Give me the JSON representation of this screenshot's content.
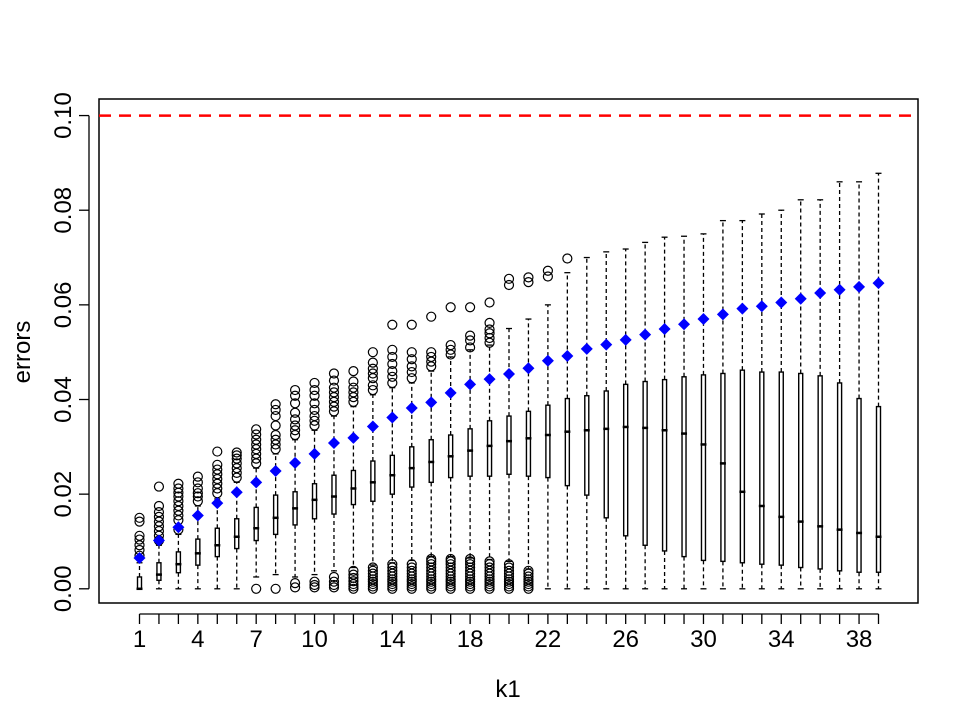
{
  "chart_data": {
    "type": "boxplot",
    "xlabel": "k1",
    "ylabel": "errors",
    "ylim": [
      -0.003,
      0.1035
    ],
    "yticks": [
      "0.00",
      "0.02",
      "0.04",
      "0.06",
      "0.08",
      "0.10"
    ],
    "xtick_labels": [
      "1",
      "4",
      "7",
      "10",
      "14",
      "18",
      "22",
      "26",
      "30",
      "34",
      "38"
    ],
    "categories": [
      1,
      2,
      3,
      4,
      5,
      6,
      7,
      8,
      9,
      10,
      11,
      12,
      13,
      14,
      15,
      16,
      17,
      18,
      19,
      20,
      21,
      22,
      23,
      24,
      25,
      26,
      27,
      28,
      29,
      30,
      31,
      32,
      33,
      34,
      35,
      36,
      37,
      38,
      39
    ],
    "threshold": {
      "value": 0.1,
      "color": "#ff0000",
      "style": "dashed"
    },
    "mean_series": {
      "color": "#0000ff",
      "values": [
        0.0065,
        0.0102,
        0.013,
        0.0155,
        0.0181,
        0.0204,
        0.0225,
        0.0249,
        0.0266,
        0.0285,
        0.0308,
        0.0319,
        0.0343,
        0.0362,
        0.0382,
        0.0394,
        0.0414,
        0.0432,
        0.0443,
        0.0454,
        0.0466,
        0.0482,
        0.0492,
        0.0507,
        0.0516,
        0.0526,
        0.0537,
        0.0549,
        0.0559,
        0.057,
        0.058,
        0.0592,
        0.0597,
        0.0605,
        0.0613,
        0.0625,
        0.0632,
        0.0638,
        0.0646
      ]
    },
    "boxes": [
      {
        "low": 0.0,
        "q1": 0.0,
        "median": 0.0,
        "q3": 0.0025,
        "high": 0.0055,
        "outliers": [
          0.007,
          0.0082,
          0.0092,
          0.0104,
          0.0112,
          0.0142,
          0.015
        ]
      },
      {
        "low": 0.0,
        "q1": 0.0018,
        "median": 0.003,
        "q3": 0.0055,
        "high": 0.0092,
        "outliers": [
          0.0102,
          0.0112,
          0.0122,
          0.0132,
          0.0142,
          0.0152,
          0.0162,
          0.0175,
          0.0216
        ]
      },
      {
        "low": 0.0,
        "q1": 0.0034,
        "median": 0.0052,
        "q3": 0.0078,
        "high": 0.0115,
        "outliers": [
          0.0125,
          0.0145,
          0.0155,
          0.0165,
          0.0175,
          0.0185,
          0.0195,
          0.0203,
          0.0212,
          0.0222
        ]
      },
      {
        "low": 0.0,
        "q1": 0.005,
        "median": 0.0075,
        "q3": 0.0105,
        "high": 0.0175,
        "outliers": [
          0.0185,
          0.0195,
          0.0202,
          0.0212,
          0.0225,
          0.0237
        ]
      },
      {
        "low": 0.0,
        "q1": 0.0068,
        "median": 0.0092,
        "q3": 0.0128,
        "high": 0.019,
        "outliers": [
          0.0202,
          0.0212,
          0.0222,
          0.0232,
          0.0242,
          0.0252,
          0.0262,
          0.029
        ]
      },
      {
        "low": 0.0,
        "q1": 0.0085,
        "median": 0.011,
        "q3": 0.0148,
        "high": 0.0225,
        "outliers": [
          0.0235,
          0.0245,
          0.0255,
          0.0265,
          0.0275,
          0.0282,
          0.0288
        ]
      },
      {
        "low": 0.0025,
        "q1": 0.0102,
        "median": 0.0128,
        "q3": 0.0172,
        "high": 0.0255,
        "outliers": [
          0.0,
          0.0265,
          0.0275,
          0.0285,
          0.0295,
          0.0305,
          0.0315,
          0.0326,
          0.0337
        ]
      },
      {
        "low": 0.003,
        "q1": 0.0115,
        "median": 0.015,
        "q3": 0.0198,
        "high": 0.0285,
        "outliers": [
          0.0,
          0.0295,
          0.0305,
          0.0315,
          0.0325,
          0.0345,
          0.0365,
          0.0378,
          0.039
        ]
      },
      {
        "low": 0.0025,
        "q1": 0.0135,
        "median": 0.017,
        "q3": 0.0205,
        "high": 0.0315,
        "outliers": [
          0.0003,
          0.0012,
          0.0325,
          0.0335,
          0.0345,
          0.0358,
          0.0372,
          0.0392,
          0.0408,
          0.042
        ]
      },
      {
        "low": 0.003,
        "q1": 0.0148,
        "median": 0.0188,
        "q3": 0.0222,
        "high": 0.0335,
        "outliers": [
          0.0003,
          0.0008,
          0.0015,
          0.0345,
          0.0355,
          0.0365,
          0.0378,
          0.0392,
          0.0408,
          0.042,
          0.0435
        ]
      },
      {
        "low": 0.0038,
        "q1": 0.0158,
        "median": 0.0195,
        "q3": 0.024,
        "high": 0.0365,
        "outliers": [
          0.0003,
          0.0008,
          0.0015,
          0.0025,
          0.0375,
          0.0385,
          0.0395,
          0.0405,
          0.0415,
          0.0425,
          0.044,
          0.0455
        ]
      },
      {
        "low": 0.0045,
        "q1": 0.0178,
        "median": 0.0212,
        "q3": 0.025,
        "high": 0.0385,
        "outliers": [
          0.0,
          0.0005,
          0.001,
          0.0016,
          0.0023,
          0.003,
          0.0038,
          0.0395,
          0.0405,
          0.0415,
          0.0425,
          0.0438,
          0.046
        ]
      },
      {
        "low": 0.005,
        "q1": 0.0185,
        "median": 0.0225,
        "q3": 0.027,
        "high": 0.041,
        "outliers": [
          0.0,
          0.0005,
          0.001,
          0.0015,
          0.002,
          0.0026,
          0.0032,
          0.0038,
          0.0045,
          0.042,
          0.043,
          0.0445,
          0.0455,
          0.0465,
          0.0478,
          0.05
        ]
      },
      {
        "low": 0.0055,
        "q1": 0.02,
        "median": 0.024,
        "q3": 0.0282,
        "high": 0.0425,
        "outliers": [
          0.0,
          0.0005,
          0.001,
          0.0015,
          0.002,
          0.0026,
          0.0032,
          0.0038,
          0.0045,
          0.0052,
          0.0435,
          0.0448,
          0.046,
          0.0475,
          0.049,
          0.0505,
          0.0558
        ]
      },
      {
        "low": 0.006,
        "q1": 0.0215,
        "median": 0.0255,
        "q3": 0.03,
        "high": 0.0435,
        "outliers": [
          0.0,
          0.0005,
          0.001,
          0.0015,
          0.002,
          0.0026,
          0.0032,
          0.0038,
          0.0045,
          0.0052,
          0.0445,
          0.0458,
          0.047,
          0.0485,
          0.05,
          0.0558
        ]
      },
      {
        "low": 0.0068,
        "q1": 0.0225,
        "median": 0.0268,
        "q3": 0.0315,
        "high": 0.046,
        "outliers": [
          0.0,
          0.0005,
          0.001,
          0.0015,
          0.002,
          0.0026,
          0.0032,
          0.0038,
          0.0045,
          0.0052,
          0.0058,
          0.0063,
          0.047,
          0.048,
          0.049,
          0.05,
          0.0575
        ]
      },
      {
        "low": 0.0068,
        "q1": 0.0235,
        "median": 0.028,
        "q3": 0.0325,
        "high": 0.049,
        "outliers": [
          0.0,
          0.0005,
          0.001,
          0.0015,
          0.002,
          0.0026,
          0.0032,
          0.0038,
          0.0045,
          0.0052,
          0.0058,
          0.0063,
          0.0495,
          0.0505,
          0.0515,
          0.0595
        ]
      },
      {
        "low": 0.0065,
        "q1": 0.0238,
        "median": 0.0292,
        "q3": 0.0338,
        "high": 0.0505,
        "outliers": [
          0.0,
          0.0005,
          0.001,
          0.0015,
          0.002,
          0.0026,
          0.0032,
          0.0038,
          0.0045,
          0.0052,
          0.0058,
          0.0063,
          0.051,
          0.0525,
          0.0535,
          0.0595
        ]
      },
      {
        "low": 0.0062,
        "q1": 0.0238,
        "median": 0.0302,
        "q3": 0.0355,
        "high": 0.0515,
        "outliers": [
          0.0,
          0.0005,
          0.001,
          0.0015,
          0.002,
          0.0026,
          0.0032,
          0.0038,
          0.0045,
          0.0052,
          0.0058,
          0.052,
          0.053,
          0.054,
          0.0548,
          0.0562,
          0.0605
        ]
      },
      {
        "low": 0.0058,
        "q1": 0.0242,
        "median": 0.0312,
        "q3": 0.0365,
        "high": 0.055,
        "outliers": [
          0.0,
          0.0005,
          0.001,
          0.0015,
          0.002,
          0.0026,
          0.0032,
          0.0038,
          0.0045,
          0.0052,
          0.0642,
          0.0655
        ]
      },
      {
        "low": 0.0042,
        "q1": 0.0238,
        "median": 0.0318,
        "q3": 0.0375,
        "high": 0.057,
        "outliers": [
          0.0,
          0.0005,
          0.001,
          0.0015,
          0.002,
          0.0026,
          0.0032,
          0.0038,
          0.0648,
          0.0658
        ]
      },
      {
        "low": 0.0,
        "q1": 0.0235,
        "median": 0.0325,
        "q3": 0.0388,
        "high": 0.06,
        "outliers": [
          0.066,
          0.0672
        ]
      },
      {
        "low": 0.0,
        "q1": 0.0218,
        "median": 0.0332,
        "q3": 0.0402,
        "high": 0.0668,
        "outliers": [
          0.0698
        ]
      },
      {
        "low": 0.0,
        "q1": 0.0198,
        "median": 0.0335,
        "q3": 0.0408,
        "high": 0.07,
        "outliers": []
      },
      {
        "low": 0.0,
        "q1": 0.015,
        "median": 0.0338,
        "q3": 0.0418,
        "high": 0.0712,
        "outliers": []
      },
      {
        "low": 0.0,
        "q1": 0.0112,
        "median": 0.0342,
        "q3": 0.0432,
        "high": 0.0718,
        "outliers": []
      },
      {
        "low": 0.0,
        "q1": 0.0092,
        "median": 0.034,
        "q3": 0.0438,
        "high": 0.0732,
        "outliers": []
      },
      {
        "low": 0.0,
        "q1": 0.008,
        "median": 0.0335,
        "q3": 0.0442,
        "high": 0.0743,
        "outliers": []
      },
      {
        "low": 0.0,
        "q1": 0.0068,
        "median": 0.0328,
        "q3": 0.0448,
        "high": 0.0745,
        "outliers": []
      },
      {
        "low": 0.0,
        "q1": 0.006,
        "median": 0.0305,
        "q3": 0.0452,
        "high": 0.075,
        "outliers": []
      },
      {
        "low": 0.0,
        "q1": 0.0058,
        "median": 0.0265,
        "q3": 0.0455,
        "high": 0.0778,
        "outliers": []
      },
      {
        "low": 0.0,
        "q1": 0.0055,
        "median": 0.0205,
        "q3": 0.0462,
        "high": 0.0778,
        "outliers": []
      },
      {
        "low": 0.0,
        "q1": 0.0052,
        "median": 0.0175,
        "q3": 0.0458,
        "high": 0.0792,
        "outliers": []
      },
      {
        "low": 0.0,
        "q1": 0.005,
        "median": 0.0152,
        "q3": 0.0458,
        "high": 0.08,
        "outliers": []
      },
      {
        "low": 0.0,
        "q1": 0.0045,
        "median": 0.0142,
        "q3": 0.0455,
        "high": 0.0822,
        "outliers": []
      },
      {
        "low": 0.0,
        "q1": 0.0042,
        "median": 0.0132,
        "q3": 0.045,
        "high": 0.0822,
        "outliers": []
      },
      {
        "low": 0.0,
        "q1": 0.0038,
        "median": 0.0125,
        "q3": 0.0435,
        "high": 0.086,
        "outliers": []
      },
      {
        "low": 0.0,
        "q1": 0.0035,
        "median": 0.0118,
        "q3": 0.0402,
        "high": 0.086,
        "outliers": []
      },
      {
        "low": 0.0,
        "q1": 0.0035,
        "median": 0.011,
        "q3": 0.0385,
        "high": 0.0878,
        "outliers": []
      }
    ]
  }
}
